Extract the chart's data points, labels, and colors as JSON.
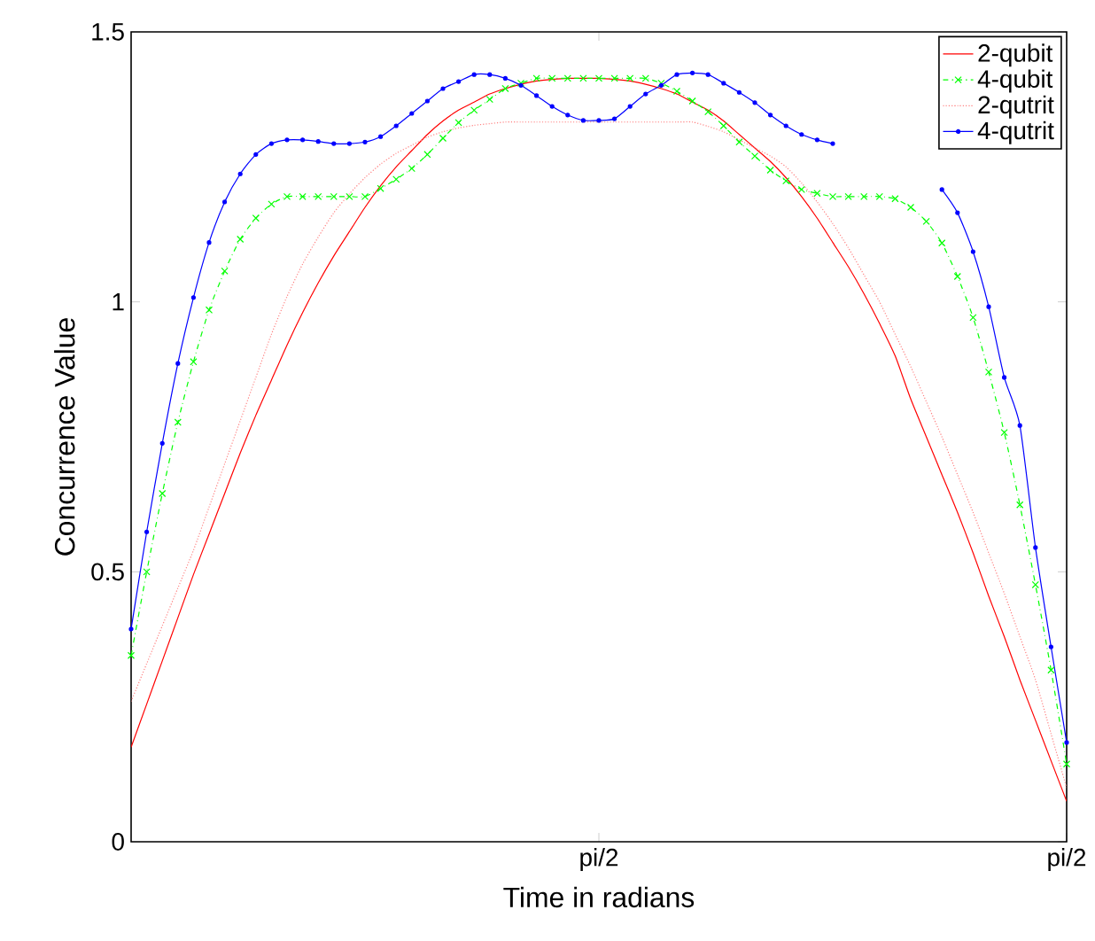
{
  "chart_data": {
    "type": "line",
    "xlabel": "Time in radians",
    "ylabel": "Concurrence Value",
    "categories": [
      null,
      null,
      null,
      null,
      null,
      null,
      null,
      null,
      null,
      null,
      null,
      null,
      null,
      null,
      null,
      null,
      null,
      null,
      null,
      null,
      null,
      null,
      null,
      null,
      null,
      null,
      null,
      null,
      null,
      null,
      "pi/2",
      null,
      null,
      null,
      null,
      null,
      null,
      null,
      null,
      null,
      null,
      null,
      null,
      null,
      null,
      null,
      null,
      null,
      null,
      null,
      null,
      null,
      null,
      null,
      null,
      null,
      null,
      null,
      null,
      null,
      "pi/2"
    ],
    "ylim": [
      0,
      1.5
    ],
    "yticks": [
      0,
      0.5,
      1,
      1.5
    ],
    "legend": "top right",
    "grid": false,
    "series": [
      {
        "name": "2-qubit",
        "color": "#ff0000",
        "line_style": "solid",
        "marker": "none",
        "values": [
          0.175,
          0.255,
          0.335,
          0.415,
          0.495,
          0.57,
          0.645,
          0.72,
          0.79,
          0.855,
          0.92,
          0.98,
          1.035,
          1.085,
          1.13,
          1.175,
          1.215,
          1.25,
          1.28,
          1.31,
          1.335,
          1.355,
          1.37,
          1.385,
          1.395,
          1.403,
          1.409,
          1.412,
          1.414,
          1.414,
          1.414,
          1.412,
          1.409,
          1.403,
          1.395,
          1.385,
          1.37,
          1.355,
          1.335,
          1.31,
          1.285,
          1.26,
          1.23,
          1.195,
          1.155,
          1.11,
          1.065,
          1.015,
          0.96,
          0.9,
          0.82,
          0.75,
          0.68,
          0.61,
          0.535,
          0.455,
          0.38,
          0.3,
          0.225,
          0.15,
          0.075
        ]
      },
      {
        "name": "4-qubit",
        "color": "#00ff00",
        "line_style": "dashdot",
        "marker": "cross",
        "values": [
          0.345,
          0.5,
          0.645,
          0.777,
          0.889,
          0.985,
          1.057,
          1.116,
          1.155,
          1.181,
          1.195,
          1.195,
          1.195,
          1.195,
          1.195,
          1.195,
          1.21,
          1.227,
          1.247,
          1.273,
          1.303,
          1.332,
          1.355,
          1.375,
          1.395,
          1.405,
          1.414,
          1.414,
          1.414,
          1.414,
          1.414,
          1.414,
          1.414,
          1.414,
          1.405,
          1.39,
          1.372,
          1.352,
          1.326,
          1.296,
          1.27,
          1.244,
          1.224,
          1.208,
          1.201,
          1.195,
          1.195,
          1.195,
          1.195,
          1.191,
          1.175,
          1.149,
          1.109,
          1.047,
          0.971,
          0.87,
          0.758,
          0.624,
          0.476,
          0.318,
          0.144
        ]
      },
      {
        "name": "2-qutrit",
        "color": "#ff8080",
        "line_style": "dotted",
        "marker": "none",
        "values": [
          0.26,
          0.33,
          0.4,
          0.47,
          0.54,
          0.62,
          0.7,
          0.78,
          0.86,
          0.94,
          1.01,
          1.07,
          1.12,
          1.165,
          1.2,
          1.23,
          1.255,
          1.275,
          1.29,
          1.305,
          1.315,
          1.322,
          1.327,
          1.33,
          1.333,
          1.333,
          1.333,
          1.333,
          1.333,
          1.333,
          1.333,
          1.333,
          1.333,
          1.333,
          1.333,
          1.333,
          1.333,
          1.325,
          1.315,
          1.3,
          1.285,
          1.27,
          1.25,
          1.22,
          1.185,
          1.145,
          1.1,
          1.05,
          1.0,
          0.94,
          0.88,
          0.815,
          0.75,
          0.68,
          0.61,
          0.535,
          0.46,
          0.38,
          0.3,
          0.2,
          0.1
        ]
      },
      {
        "name": "4-qutrit",
        "color": "#0000ff",
        "line_style": "solid",
        "marker": "circle",
        "values": [
          0.394,
          0.574,
          0.738,
          0.886,
          1.008,
          1.11,
          1.185,
          1.237,
          1.273,
          1.293,
          1.3,
          1.3,
          1.297,
          1.293,
          1.293,
          1.296,
          1.306,
          1.326,
          1.349,
          1.372,
          1.395,
          1.408,
          1.421,
          1.421,
          1.414,
          1.401,
          1.382,
          1.362,
          1.346,
          1.336,
          1.336,
          1.339,
          1.362,
          1.385,
          1.401,
          1.421,
          1.424,
          1.421,
          1.405,
          1.388,
          1.369,
          1.346,
          1.326,
          1.31,
          1.3,
          1.293,
          null,
          null,
          null,
          null,
          null,
          null,
          1.208,
          1.165,
          1.093,
          0.991,
          0.86,
          0.771,
          0.545,
          0.361,
          0.184
        ]
      }
    ]
  }
}
